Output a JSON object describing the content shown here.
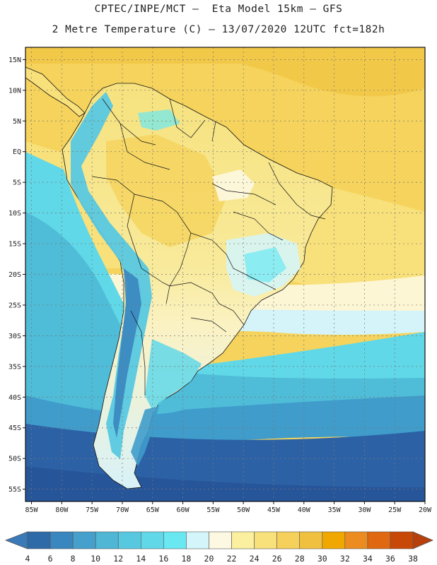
{
  "header": {
    "line1": "CPTEC/INPE/MCT –  Eta Model 15km – GFS",
    "line2": "2 Metre Temperature (C) – 13/07/2020 12UTC fct=182h"
  },
  "map": {
    "lon_range": [
      -86,
      -20
    ],
    "lat_range": [
      17,
      -57
    ],
    "lat_ticks": [
      {
        "value": 15,
        "label": "15N"
      },
      {
        "value": 10,
        "label": "10N"
      },
      {
        "value": 5,
        "label": "5N"
      },
      {
        "value": 0,
        "label": "EQ"
      },
      {
        "value": -5,
        "label": "5S"
      },
      {
        "value": -10,
        "label": "10S"
      },
      {
        "value": -15,
        "label": "15S"
      },
      {
        "value": -20,
        "label": "20S"
      },
      {
        "value": -25,
        "label": "25S"
      },
      {
        "value": -30,
        "label": "30S"
      },
      {
        "value": -35,
        "label": "35S"
      },
      {
        "value": -40,
        "label": "40S"
      },
      {
        "value": -45,
        "label": "45S"
      },
      {
        "value": -50,
        "label": "50S"
      },
      {
        "value": -55,
        "label": "55S"
      }
    ],
    "lon_ticks": [
      {
        "value": -85,
        "label": "85W"
      },
      {
        "value": -80,
        "label": "80W"
      },
      {
        "value": -75,
        "label": "75W"
      },
      {
        "value": -70,
        "label": "70W"
      },
      {
        "value": -65,
        "label": "65W"
      },
      {
        "value": -60,
        "label": "60W"
      },
      {
        "value": -55,
        "label": "55W"
      },
      {
        "value": -50,
        "label": "50W"
      },
      {
        "value": -45,
        "label": "45W"
      },
      {
        "value": -40,
        "label": "40W"
      },
      {
        "value": -35,
        "label": "35W"
      },
      {
        "value": -30,
        "label": "30W"
      },
      {
        "value": -25,
        "label": "25W"
      },
      {
        "value": -20,
        "label": "20W"
      }
    ]
  },
  "colorbar": {
    "labels": [
      "4",
      "6",
      "8",
      "10",
      "12",
      "14",
      "16",
      "18",
      "20",
      "22",
      "24",
      "26",
      "28",
      "30",
      "32",
      "34",
      "36",
      "38"
    ],
    "low_color": "#3a7ab8",
    "high_color": "#b8400c",
    "colors": [
      "#2f6aa8",
      "#3a86bf",
      "#45a0cc",
      "#4fb6d6",
      "#58c8e0",
      "#60d8e8",
      "#6ae8f2",
      "#d4f6fb",
      "#fdf8e2",
      "#fbf0a0",
      "#f8e07a",
      "#f5d05a",
      "#f0c040",
      "#f0a800",
      "#ec8c20",
      "#e06810",
      "#c84808"
    ]
  }
}
